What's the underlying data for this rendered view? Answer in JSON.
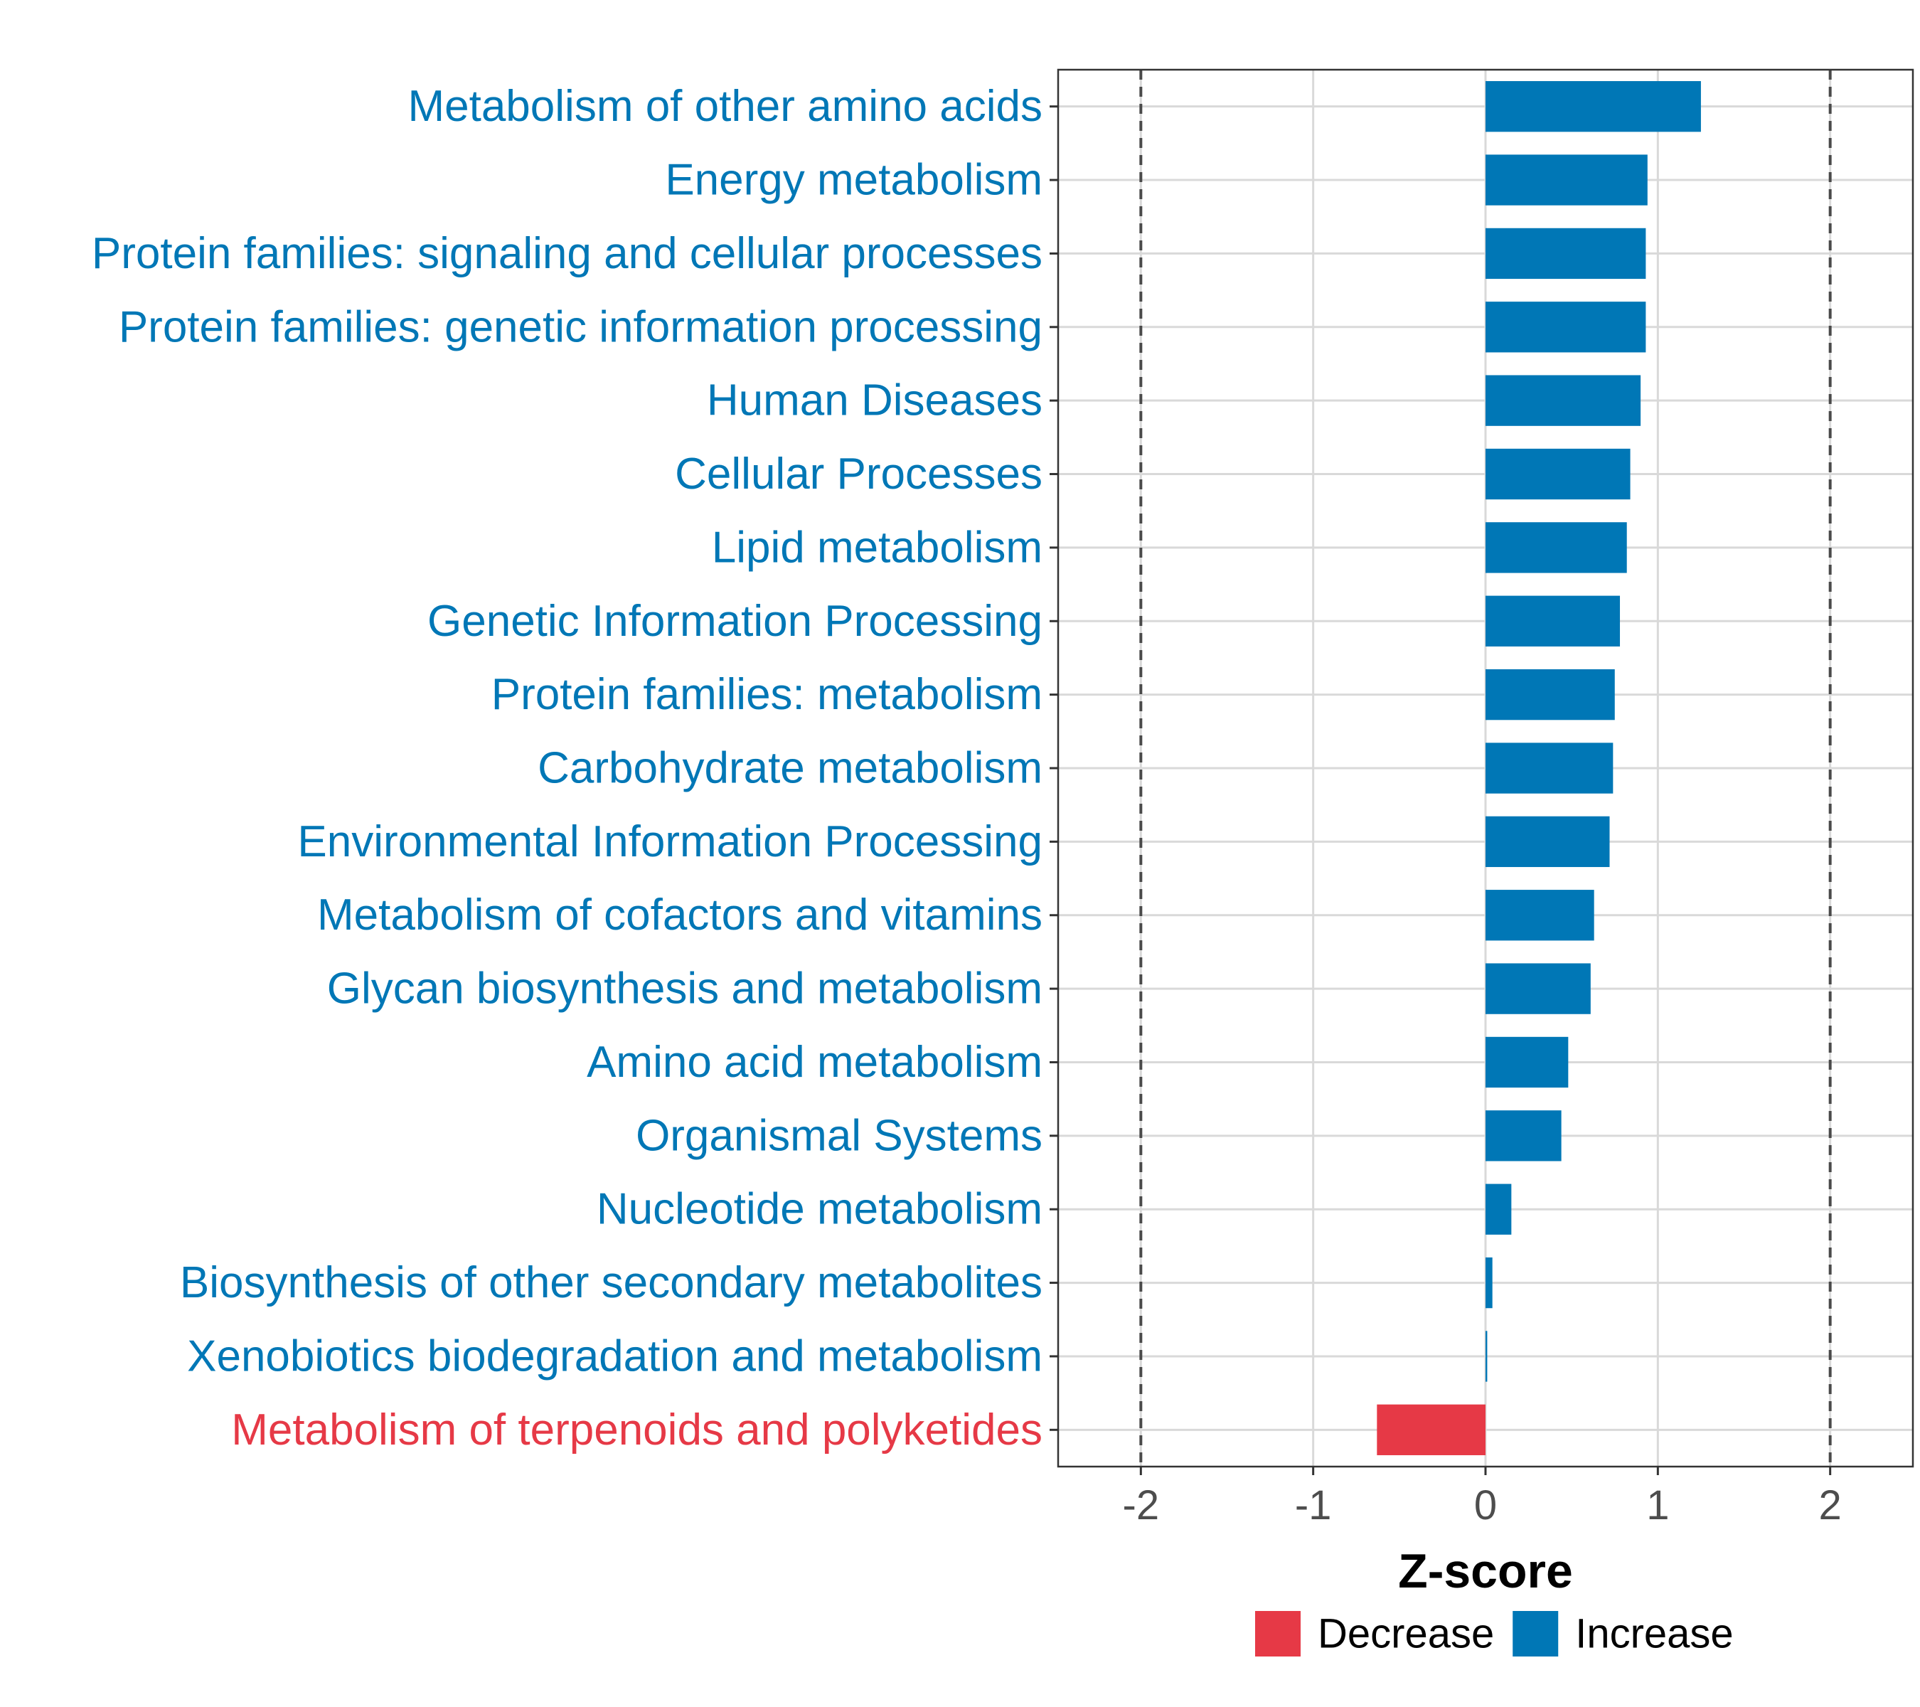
{
  "chart_data": {
    "type": "bar",
    "orientation": "horizontal",
    "title": "",
    "xlabel": "Z-score",
    "ylabel": "",
    "xlim": [
      -2.48,
      2.48
    ],
    "xticks": [
      -2,
      -1,
      0,
      1,
      2
    ],
    "xtick_labels": [
      "-2",
      "-1",
      "0",
      "1",
      "2"
    ],
    "reference_lines": [
      -2,
      2
    ],
    "grid": true,
    "colors": {
      "Decrease": "#E63946",
      "Increase": "#0077B6"
    },
    "categories": [
      "Metabolism of other amino acids",
      "Energy metabolism",
      "Protein families: signaling and cellular processes",
      "Protein families: genetic information processing",
      "Human Diseases",
      "Cellular Processes",
      "Lipid metabolism",
      "Genetic Information Processing",
      "Protein families: metabolism",
      "Carbohydrate metabolism",
      "Environmental Information Processing",
      "Metabolism of cofactors and vitamins",
      "Glycan biosynthesis and metabolism",
      "Amino acid metabolism",
      "Organismal Systems",
      "Nucleotide metabolism",
      "Biosynthesis of other secondary metabolites",
      "Xenobiotics biodegradation and metabolism",
      "Metabolism of terpenoids and polyketides"
    ],
    "values": [
      1.25,
      0.94,
      0.93,
      0.93,
      0.9,
      0.84,
      0.82,
      0.78,
      0.75,
      0.74,
      0.72,
      0.63,
      0.61,
      0.48,
      0.44,
      0.15,
      0.04,
      0.01,
      -0.63
    ],
    "groups": [
      "Increase",
      "Increase",
      "Increase",
      "Increase",
      "Increase",
      "Increase",
      "Increase",
      "Increase",
      "Increase",
      "Increase",
      "Increase",
      "Increase",
      "Increase",
      "Increase",
      "Increase",
      "Increase",
      "Increase",
      "Increase",
      "Decrease"
    ],
    "legend": {
      "placement": "bottom",
      "entries": [
        {
          "label": "Decrease",
          "color": "#E63946"
        },
        {
          "label": "Increase",
          "color": "#0077B6"
        }
      ]
    }
  }
}
